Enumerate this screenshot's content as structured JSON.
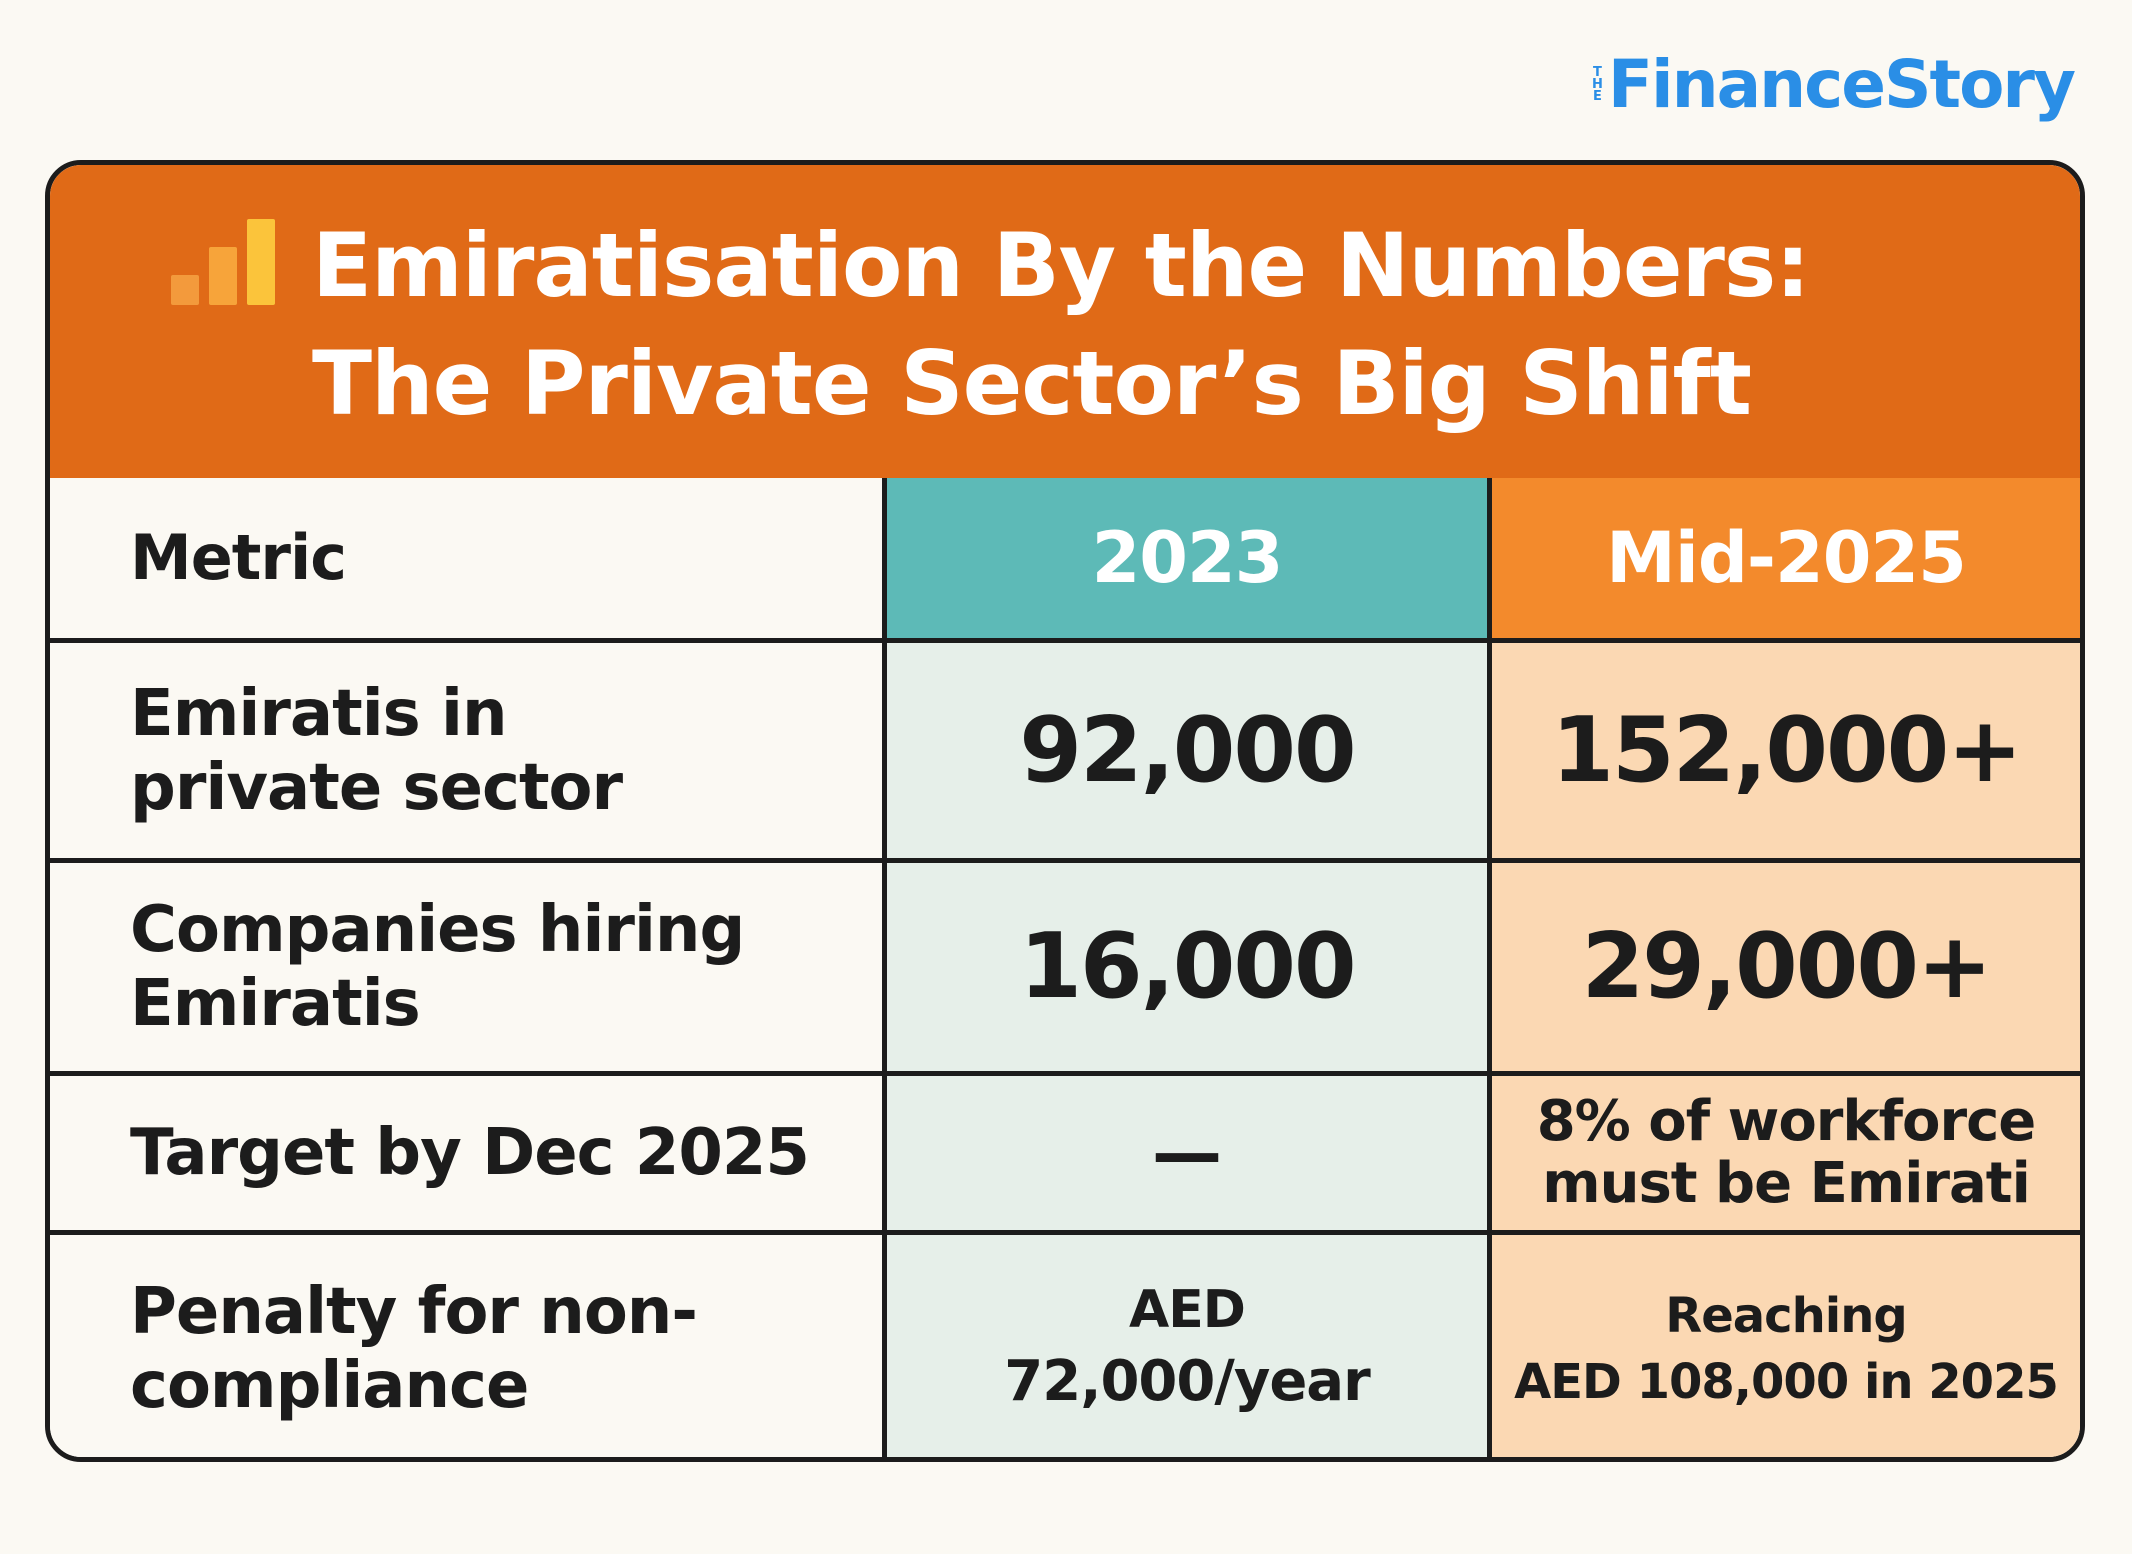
{
  "logo": {
    "prefix": "THE",
    "name": "FinanceStory"
  },
  "banner": {
    "icon": "bar-chart-icon",
    "title_line1": "Emiratisation By the Numbers:",
    "title_line2": "The Private Sector’s Big Shift",
    "bar_colors": [
      "#f39a3c",
      "#f7a43a",
      "#fbc43b"
    ]
  },
  "table": {
    "headers": [
      "Metric",
      "2023",
      "Mid-2025"
    ],
    "rows": [
      {
        "metric": "Emiratis in private sector",
        "y2023": "92,000",
        "mid2025": "152,000+"
      },
      {
        "metric": "Companies hiring Emiratis",
        "y2023": "16,000",
        "mid2025": "29,000+"
      },
      {
        "metric": "Target by Dec 2025",
        "y2023": "—",
        "mid2025_line1": "8% of workforce",
        "mid2025_line2": "must be Emirati"
      },
      {
        "metric": "Penalty for non-compliance",
        "y2023_line1": "AED",
        "y2023_line2": "72,000/year",
        "mid2025_line1": "Reaching",
        "mid2025_line2": "AED 108,000 in 2025"
      }
    ]
  },
  "colors": {
    "banner": "#e06a17",
    "header_2023": "#5dbab7",
    "header_2025": "#f38a2c",
    "cell_2023": "#e6efe9",
    "cell_2025": "#fbd8b3",
    "logo": "#2a8ee6"
  }
}
